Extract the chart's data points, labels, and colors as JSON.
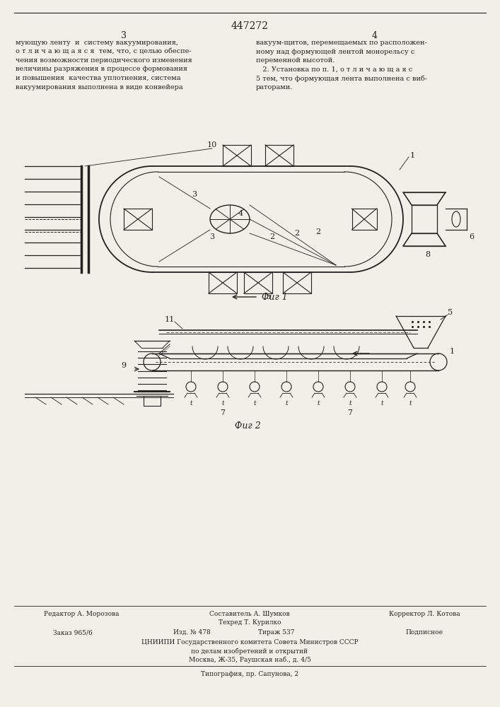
{
  "patent_number": "447272",
  "page_left": "3",
  "page_right": "4",
  "fig1_caption": "Фиг 1",
  "fig2_caption": "Фиг 2",
  "bottom_editor": "Редактор А. Морозова",
  "bottom_compiler": "Составитель А. Шумков",
  "bottom_tech": "Техред Т. Курилко",
  "bottom_corrector": "Корректор Л. Котова",
  "bottom_order": "Заказ 965/6",
  "bottom_izd": "Изд. № 478",
  "bottom_tirazh": "Тираж 537",
  "bottom_podpisnoe": "Подписное",
  "bottom_cniipI": "ЦНИИПИ Государственного комитета Совета Министров СССР",
  "bottom_po_delam": "по делам изобретений и открытий",
  "bottom_moskva": "Москва, Ж-35, Раушская наб., д. 4/5",
  "bottom_tipografia": "Типография, пр. Сапунова, 2",
  "bg_color": "#f0efe8",
  "line_color": "#222222",
  "text_left_lines": [
    "мующую ленту  и  систему вакуумирования,",
    "о т л и ч а ю щ а я с я  тем, что, с целью обеспе-",
    "чения возможности периодического изменения",
    "величины разряжения в процессе формования",
    "и повышения  качества уплотнения, система",
    "вакуумирования выполнена в виде конвейера"
  ],
  "text_right_lines": [
    "вакуум-щитов, перемещаемых по расположен-",
    "ному над формующей лентой монорельсу с",
    "переменной высотой.",
    "   2. Установка по п. 1, о т л и ч а ю щ а я с",
    "5 тем, что формующая лента выполнена с виб-",
    "раторами."
  ]
}
